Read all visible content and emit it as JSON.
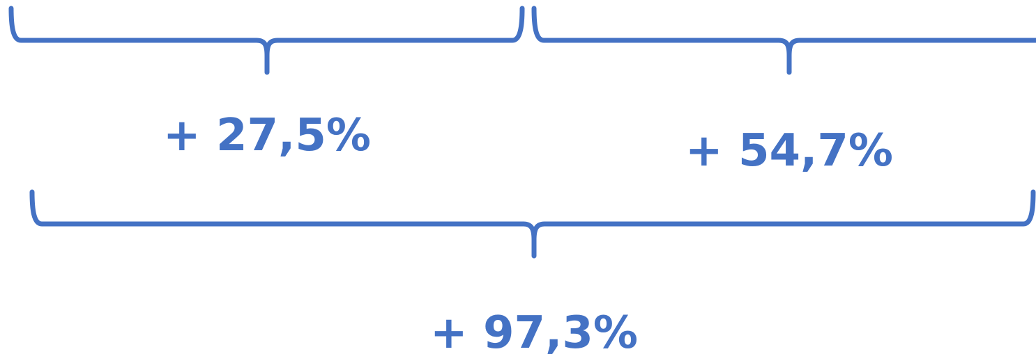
{
  "accent_color": "#4472C4",
  "labels": {
    "first_period_change": "+ 27,5%",
    "second_period_change": "+ 54,7%",
    "total_change": "+ 97,3%"
  }
}
